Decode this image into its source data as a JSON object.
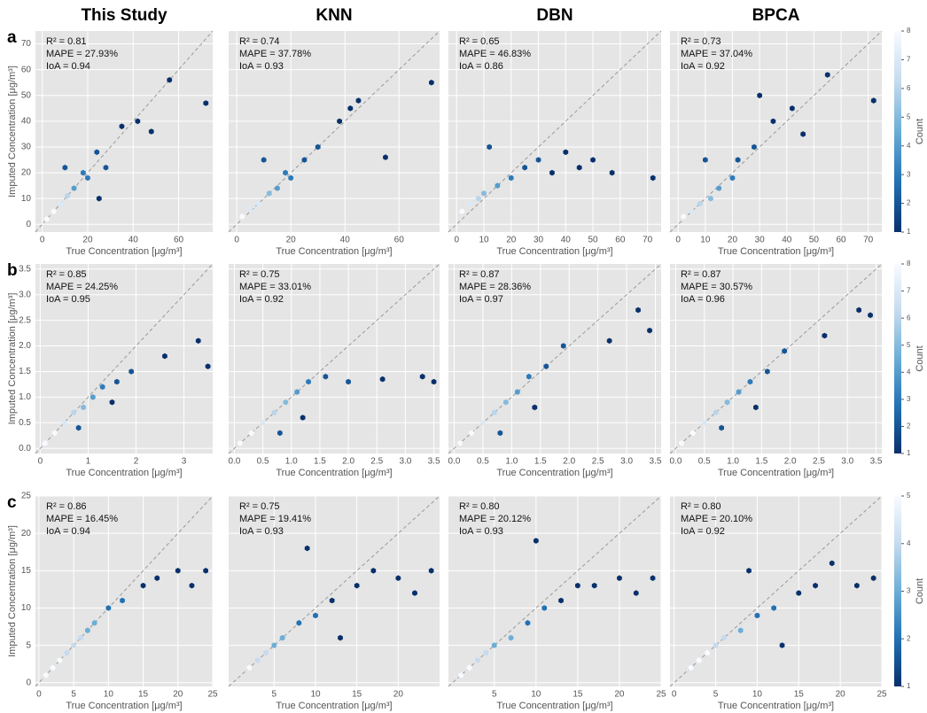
{
  "chart_data": [
    {
      "type": "hexbin",
      "title": "This Study",
      "panel_label": "a",
      "annotations": [
        "R² = 0.81",
        "MAPE = 27.93%",
        "IoA = 0.94"
      ],
      "xlabel": "True Concentration [μg/m³]",
      "ylabel": "Imputed Concentration [μg/m³]",
      "xlim": [
        -3,
        75
      ],
      "ylim": [
        -3,
        75
      ],
      "xticks": [
        0,
        20,
        40,
        60
      ],
      "yticks": [
        0,
        10,
        20,
        30,
        40,
        50,
        60,
        70
      ],
      "grid": true,
      "clim": [
        1,
        8
      ],
      "x": [
        2,
        5,
        8,
        11,
        14,
        18,
        20,
        24,
        28,
        35,
        42,
        48,
        56,
        72,
        10,
        25
      ],
      "y": [
        2,
        5,
        8,
        11,
        14,
        20,
        18,
        28,
        22,
        38,
        40,
        36,
        56,
        47,
        22,
        10
      ],
      "counts": [
        8,
        8,
        7,
        6,
        4,
        3,
        3,
        2,
        2,
        1,
        1,
        1,
        1,
        1,
        2,
        1
      ]
    },
    {
      "type": "hexbin",
      "title": "KNN",
      "annotations": [
        "R² = 0.74",
        "MAPE = 37.78%",
        "IoA = 0.93"
      ],
      "xlabel": "True Concentration [μg/m³]",
      "xlim": [
        -3,
        75
      ],
      "ylim": [
        -3,
        75
      ],
      "xticks": [
        0,
        20,
        40,
        60
      ],
      "grid": true,
      "clim": [
        1,
        8
      ],
      "x": [
        2,
        5,
        8,
        12,
        15,
        18,
        20,
        25,
        30,
        38,
        42,
        45,
        55,
        72,
        10
      ],
      "y": [
        3,
        6,
        8,
        12,
        14,
        20,
        18,
        25,
        30,
        40,
        45,
        48,
        26,
        55,
        25
      ],
      "counts": [
        8,
        7,
        7,
        5,
        4,
        3,
        3,
        2,
        2,
        1,
        1,
        1,
        1,
        1,
        2
      ]
    },
    {
      "type": "hexbin",
      "title": "DBN",
      "annotations": [
        "R² = 0.65",
        "MAPE = 46.83%",
        "IoA = 0.86"
      ],
      "xlabel": "True Concentration [μg/m³]",
      "xlim": [
        -3,
        75
      ],
      "ylim": [
        -3,
        75
      ],
      "xticks": [
        0,
        10,
        20,
        30,
        40,
        50,
        60,
        70
      ],
      "grid": true,
      "clim": [
        1,
        8
      ],
      "x": [
        2,
        5,
        8,
        10,
        15,
        20,
        25,
        30,
        35,
        40,
        45,
        50,
        57,
        72,
        12
      ],
      "y": [
        5,
        8,
        10,
        12,
        15,
        18,
        22,
        25,
        20,
        28,
        22,
        25,
        20,
        18,
        30
      ],
      "counts": [
        8,
        7,
        6,
        5,
        4,
        3,
        2,
        2,
        1,
        1,
        1,
        1,
        1,
        1,
        2
      ]
    },
    {
      "type": "hexbin",
      "title": "BPCA",
      "annotations": [
        "R² = 0.73",
        "MAPE = 37.04%",
        "IoA = 0.92"
      ],
      "xlabel": "True Concentration [μg/m³]",
      "xlim": [
        -3,
        75
      ],
      "ylim": [
        -3,
        75
      ],
      "xticks": [
        0,
        10,
        20,
        30,
        40,
        50,
        60,
        70
      ],
      "grid": true,
      "clim": [
        1,
        8
      ],
      "colorbar": {
        "label": "Count",
        "ticks": [
          1,
          2,
          3,
          4,
          5,
          6,
          7,
          8
        ]
      },
      "x": [
        2,
        5,
        8,
        12,
        15,
        20,
        22,
        28,
        35,
        42,
        46,
        55,
        72,
        10,
        30
      ],
      "y": [
        3,
        5,
        8,
        10,
        14,
        18,
        25,
        30,
        40,
        45,
        35,
        58,
        48,
        25,
        50
      ],
      "counts": [
        8,
        7,
        6,
        5,
        4,
        3,
        2,
        2,
        1,
        1,
        1,
        1,
        1,
        2,
        1
      ]
    },
    {
      "type": "hexbin",
      "panel_label": "b",
      "annotations": [
        "R² = 0.85",
        "MAPE = 24.25%",
        "IoA = 0.95"
      ],
      "xlabel": "True Concentration [μg/m³]",
      "ylabel": "Imputed Concentration [μg/m³]",
      "xlim": [
        -0.1,
        3.6
      ],
      "ylim": [
        -0.1,
        3.6
      ],
      "xticks": [
        0,
        1,
        2,
        3
      ],
      "yticks": [
        {
          "value": 0,
          "label": "0.0"
        },
        {
          "value": 0.5,
          "label": "0.5"
        },
        {
          "value": 1,
          "label": "1.0"
        },
        {
          "value": 1.5,
          "label": "1.5"
        },
        {
          "value": 2,
          "label": "2.0"
        },
        {
          "value": 2.5,
          "label": "2.5"
        },
        {
          "value": 3,
          "label": "3.0"
        },
        {
          "value": 3.5,
          "label": "3.5"
        }
      ],
      "grid": true,
      "clim": [
        1,
        8
      ],
      "x": [
        0.1,
        0.3,
        0.5,
        0.7,
        0.9,
        1.1,
        1.3,
        1.6,
        1.9,
        2.6,
        3.3,
        3.5,
        0.8,
        1.5
      ],
      "y": [
        0.1,
        0.3,
        0.5,
        0.7,
        0.8,
        1.0,
        1.2,
        1.3,
        1.5,
        1.8,
        2.1,
        1.6,
        0.4,
        0.9
      ],
      "counts": [
        8,
        8,
        7,
        6,
        5,
        4,
        3,
        2,
        2,
        1,
        1,
        1,
        2,
        1
      ]
    },
    {
      "type": "hexbin",
      "annotations": [
        "R² = 0.75",
        "MAPE = 33.01%",
        "IoA = 0.92"
      ],
      "xlabel": "True Concentration [μg/m³]",
      "xlim": [
        -0.1,
        3.6
      ],
      "ylim": [
        -0.1,
        3.6
      ],
      "xticks": [
        {
          "value": 0,
          "label": "0.0"
        },
        {
          "value": 0.5,
          "label": "0.5"
        },
        {
          "value": 1,
          "label": "1.0"
        },
        {
          "value": 1.5,
          "label": "1.5"
        },
        {
          "value": 2,
          "label": "2.0"
        },
        {
          "value": 2.5,
          "label": "2.5"
        },
        {
          "value": 3,
          "label": "3.0"
        },
        {
          "value": 3.5,
          "label": "3.5"
        }
      ],
      "grid": true,
      "clim": [
        1,
        8
      ],
      "x": [
        0.1,
        0.3,
        0.5,
        0.7,
        0.9,
        1.1,
        1.3,
        1.6,
        2.0,
        2.6,
        3.3,
        3.5,
        0.8,
        1.2
      ],
      "y": [
        0.1,
        0.3,
        0.5,
        0.7,
        0.9,
        1.1,
        1.3,
        1.4,
        1.3,
        1.35,
        1.4,
        1.3,
        0.3,
        0.6
      ],
      "counts": [
        8,
        8,
        7,
        6,
        5,
        4,
        3,
        2,
        2,
        1,
        1,
        1,
        2,
        1
      ]
    },
    {
      "type": "hexbin",
      "annotations": [
        "R² = 0.87",
        "MAPE = 28.36%",
        "IoA = 0.97"
      ],
      "xlabel": "True Concentration [μg/m³]",
      "xlim": [
        -0.1,
        3.6
      ],
      "ylim": [
        -0.1,
        3.6
      ],
      "xticks": [
        {
          "value": 0,
          "label": "0.0"
        },
        {
          "value": 0.5,
          "label": "0.5"
        },
        {
          "value": 1,
          "label": "1.0"
        },
        {
          "value": 1.5,
          "label": "1.5"
        },
        {
          "value": 2,
          "label": "2.0"
        },
        {
          "value": 2.5,
          "label": "2.5"
        },
        {
          "value": 3,
          "label": "3.0"
        },
        {
          "value": 3.5,
          "label": "3.5"
        }
      ],
      "grid": true,
      "clim": [
        1,
        8
      ],
      "x": [
        0.1,
        0.3,
        0.5,
        0.7,
        0.9,
        1.1,
        1.3,
        1.6,
        1.9,
        2.7,
        3.2,
        3.4,
        0.8,
        1.4
      ],
      "y": [
        0.1,
        0.3,
        0.5,
        0.7,
        0.9,
        1.1,
        1.4,
        1.6,
        2.0,
        2.1,
        2.7,
        2.3,
        0.3,
        0.8
      ],
      "counts": [
        8,
        8,
        7,
        6,
        5,
        4,
        3,
        2,
        2,
        1,
        1,
        1,
        2,
        1
      ]
    },
    {
      "type": "hexbin",
      "annotations": [
        "R² = 0.87",
        "MAPE = 30.57%",
        "IoA = 0.96"
      ],
      "xlabel": "True Concentration [μg/m³]",
      "xlim": [
        -0.1,
        3.6
      ],
      "ylim": [
        -0.1,
        3.6
      ],
      "xticks": [
        {
          "value": 0,
          "label": "0.0"
        },
        {
          "value": 0.5,
          "label": "0.5"
        },
        {
          "value": 1,
          "label": "1.0"
        },
        {
          "value": 1.5,
          "label": "1.5"
        },
        {
          "value": 2,
          "label": "2.0"
        },
        {
          "value": 2.5,
          "label": "2.5"
        },
        {
          "value": 3,
          "label": "3.0"
        },
        {
          "value": 3.5,
          "label": "3.5"
        }
      ],
      "grid": true,
      "clim": [
        1,
        8
      ],
      "colorbar": {
        "label": "Count",
        "ticks": [
          1,
          2,
          3,
          4,
          5,
          6,
          7,
          8
        ]
      },
      "x": [
        0.1,
        0.3,
        0.5,
        0.7,
        0.9,
        1.1,
        1.3,
        1.6,
        1.9,
        2.6,
        3.2,
        3.4,
        0.8,
        1.4
      ],
      "y": [
        0.1,
        0.3,
        0.5,
        0.7,
        0.9,
        1.1,
        1.3,
        1.5,
        1.9,
        2.2,
        2.7,
        2.6,
        0.4,
        0.8
      ],
      "counts": [
        8,
        8,
        7,
        6,
        5,
        4,
        3,
        2,
        2,
        1,
        1,
        1,
        2,
        1
      ]
    },
    {
      "type": "hexbin",
      "panel_label": "c",
      "annotations": [
        "R² = 0.86",
        "MAPE = 16.45%",
        "IoA = 0.94"
      ],
      "xlabel": "True Concentration [μg/m³]",
      "ylabel": "Imputed Concentration [μg/m³]",
      "xlim": [
        -0.5,
        25
      ],
      "ylim": [
        -0.5,
        25
      ],
      "xticks": [
        0,
        5,
        10,
        15,
        20,
        25
      ],
      "yticks": [
        0,
        5,
        10,
        15,
        20,
        25
      ],
      "grid": true,
      "clim": [
        1,
        5
      ],
      "x": [
        1,
        2,
        3,
        4,
        5,
        6,
        7,
        8,
        10,
        12,
        15,
        17,
        20,
        22,
        24
      ],
      "y": [
        1,
        2,
        3,
        4,
        5,
        6,
        7,
        8,
        10,
        11,
        13,
        14,
        15,
        13,
        15
      ],
      "counts": [
        5,
        5,
        5,
        4,
        4,
        4,
        3,
        3,
        2,
        2,
        1,
        1,
        1,
        1,
        1
      ]
    },
    {
      "type": "hexbin",
      "annotations": [
        "R² = 0.75",
        "MAPE = 19.41%",
        "IoA = 0.93"
      ],
      "xlabel": "True Concentration [μg/m³]",
      "xlim": [
        -0.5,
        25
      ],
      "ylim": [
        -0.5,
        25
      ],
      "xticks": [
        5,
        10,
        15,
        20
      ],
      "grid": true,
      "clim": [
        1,
        5
      ],
      "x": [
        2,
        3,
        4,
        5,
        6,
        8,
        10,
        12,
        15,
        17,
        20,
        22,
        24,
        9,
        13
      ],
      "y": [
        2,
        3,
        4,
        5,
        6,
        8,
        9,
        11,
        13,
        15,
        14,
        12,
        15,
        18,
        6
      ],
      "counts": [
        5,
        4,
        4,
        3,
        3,
        2,
        2,
        1,
        1,
        1,
        1,
        1,
        1,
        1,
        1
      ]
    },
    {
      "type": "hexbin",
      "annotations": [
        "R² = 0.80",
        "MAPE = 20.12%",
        "IoA = 0.93"
      ],
      "xlabel": "True Concentration [μg/m³]",
      "xlim": [
        -0.5,
        25
      ],
      "ylim": [
        -0.5,
        25
      ],
      "xticks": [
        5,
        10,
        15,
        20,
        25
      ],
      "grid": true,
      "clim": [
        1,
        5
      ],
      "x": [
        1,
        2,
        3,
        4,
        5,
        7,
        9,
        11,
        13,
        15,
        17,
        20,
        22,
        24,
        10
      ],
      "y": [
        1,
        2,
        3,
        4,
        5,
        6,
        8,
        10,
        11,
        13,
        13,
        14,
        12,
        14,
        19
      ],
      "counts": [
        5,
        5,
        4,
        4,
        3,
        3,
        2,
        2,
        1,
        1,
        1,
        1,
        1,
        1,
        1
      ]
    },
    {
      "type": "hexbin",
      "annotations": [
        "R² = 0.80",
        "MAPE = 20.10%",
        "IoA = 0.92"
      ],
      "xlabel": "True Concentration [μg/m³]",
      "xlim": [
        -0.5,
        25
      ],
      "ylim": [
        -0.5,
        25
      ],
      "xticks": [
        0,
        5,
        10,
        15,
        20,
        25
      ],
      "grid": true,
      "clim": [
        1,
        5
      ],
      "colorbar": {
        "label": "Count",
        "ticks": [
          1,
          2,
          3,
          4,
          5
        ]
      },
      "x": [
        2,
        3,
        4,
        5,
        6,
        8,
        10,
        12,
        15,
        17,
        19,
        22,
        24,
        9,
        13
      ],
      "y": [
        2,
        3,
        4,
        5,
        6,
        7,
        9,
        10,
        12,
        13,
        16,
        13,
        14,
        15,
        5
      ],
      "counts": [
        5,
        5,
        5,
        4,
        4,
        3,
        2,
        2,
        1,
        1,
        1,
        1,
        1,
        1,
        1
      ]
    }
  ]
}
